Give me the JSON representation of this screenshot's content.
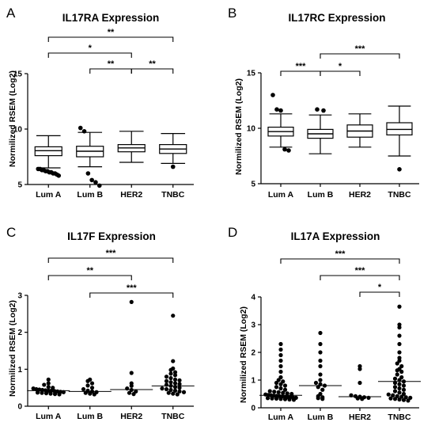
{
  "figure": {
    "background": "#ffffff",
    "ink": "#000000"
  },
  "chart_data": [
    {
      "letter": "A",
      "type": "box",
      "title": "IL17RA Expression",
      "ylabel": "Normilized RSEM (Log2)",
      "ylim": [
        5,
        15
      ],
      "yticks": [
        "5",
        "10",
        "15"
      ],
      "categories": [
        "Lum A",
        "Lum B",
        "HER2",
        "TNBC"
      ],
      "boxes": [
        {
          "whisker_low": 6.5,
          "q1": 7.6,
          "median": 8.05,
          "q3": 8.4,
          "whisker_high": 9.4,
          "outliers": [
            6.4,
            6.3,
            6.2,
            6.1,
            6.0,
            5.9,
            6.3,
            6.1,
            6.2,
            6.0,
            6.4,
            5.8
          ]
        },
        {
          "whisker_low": 6.6,
          "q1": 7.5,
          "median": 8.0,
          "q3": 8.45,
          "whisker_high": 9.7,
          "outliers": [
            6.0,
            5.4,
            4.9,
            5.2,
            9.8,
            10.1
          ]
        },
        {
          "whisker_low": 7.0,
          "q1": 7.95,
          "median": 8.3,
          "q3": 8.6,
          "whisker_high": 9.8,
          "outliers": []
        },
        {
          "whisker_low": 6.9,
          "q1": 7.8,
          "median": 8.2,
          "q3": 8.6,
          "whisker_high": 9.6,
          "outliers": [
            6.6
          ]
        }
      ],
      "brackets": [
        {
          "from": 0,
          "to": 3,
          "level": 3,
          "label": "**"
        },
        {
          "from": 0,
          "to": 2,
          "level": 2,
          "label": "*"
        },
        {
          "from": 1,
          "to": 2,
          "level": 1,
          "label": "**"
        },
        {
          "from": 2,
          "to": 3,
          "level": 1,
          "label": "**"
        }
      ]
    },
    {
      "letter": "B",
      "type": "box",
      "title": "IL17RC Expression",
      "ylabel": "Normilized RSEM (Log2)",
      "ylim": [
        5,
        15
      ],
      "yticks": [
        "5",
        "10",
        "15"
      ],
      "categories": [
        "Lum A",
        "Lum B",
        "HER2",
        "TNBC"
      ],
      "boxes": [
        {
          "whisker_low": 8.3,
          "q1": 9.3,
          "median": 9.7,
          "q3": 10.1,
          "whisker_high": 11.3,
          "outliers": [
            8.0,
            8.1,
            11.6,
            11.7,
            13.0
          ]
        },
        {
          "whisker_low": 7.7,
          "q1": 9.1,
          "median": 9.5,
          "q3": 9.9,
          "whisker_high": 11.2,
          "outliers": [
            11.6,
            11.7
          ]
        },
        {
          "whisker_low": 8.3,
          "q1": 9.2,
          "median": 9.75,
          "q3": 10.3,
          "whisker_high": 11.3,
          "outliers": []
        },
        {
          "whisker_low": 7.5,
          "q1": 9.4,
          "median": 9.9,
          "q3": 10.5,
          "whisker_high": 12.0,
          "outliers": [
            6.3
          ]
        }
      ],
      "brackets": [
        {
          "from": 1,
          "to": 3,
          "level": 2,
          "label": "***"
        },
        {
          "from": 0,
          "to": 1,
          "level": 1,
          "label": "***"
        },
        {
          "from": 1,
          "to": 2,
          "level": 1,
          "label": "*"
        }
      ]
    },
    {
      "letter": "C",
      "type": "scatter",
      "title": "IL17F Expression",
      "ylabel": "Normilized RSEM (Log2)",
      "ylim": [
        0,
        3
      ],
      "yticks": [
        "0",
        "1",
        "2",
        "3"
      ],
      "categories": [
        "Lum A",
        "Lum B",
        "HER2",
        "TNBC"
      ],
      "groups": [
        {
          "median": 0.42,
          "points": [
            0.72,
            0.62,
            0.58,
            0.52,
            0.5,
            0.48,
            0.46,
            0.45,
            0.44,
            0.43,
            0.42,
            0.42,
            0.41,
            0.4,
            0.39,
            0.38,
            0.37,
            0.36,
            0.35,
            0.34,
            0.33,
            0.32
          ]
        },
        {
          "median": 0.4,
          "points": [
            0.72,
            0.68,
            0.62,
            0.56,
            0.5,
            0.46,
            0.42,
            0.4,
            0.38,
            0.36,
            0.34,
            0.32
          ]
        },
        {
          "median": 0.45,
          "points": [
            2.82,
            0.9,
            0.62,
            0.55,
            0.48,
            0.44,
            0.4,
            0.36,
            0.33
          ]
        },
        {
          "median": 0.55,
          "points": [
            2.45,
            1.22,
            1.02,
            0.98,
            0.92,
            0.88,
            0.84,
            0.8,
            0.76,
            0.72,
            0.7,
            0.68,
            0.65,
            0.62,
            0.6,
            0.58,
            0.55,
            0.52,
            0.5,
            0.48,
            0.46,
            0.44,
            0.42,
            0.4,
            0.38,
            0.36,
            0.34,
            0.32
          ]
        }
      ],
      "brackets": [
        {
          "from": 0,
          "to": 3,
          "level": 3,
          "label": "***"
        },
        {
          "from": 0,
          "to": 2,
          "level": 2,
          "label": "**"
        },
        {
          "from": 1,
          "to": 3,
          "level": 1,
          "label": "***"
        }
      ]
    },
    {
      "letter": "D",
      "type": "scatter",
      "title": "IL17A Expression",
      "ylabel": "Normilized RSEM (Log2)",
      "ylim": [
        0,
        4
      ],
      "yticks": [
        "0",
        "1",
        "2",
        "3",
        "4"
      ],
      "categories": [
        "Lum A",
        "Lum B",
        "HER2",
        "TNBC"
      ],
      "groups": [
        {
          "median": 0.45,
          "points": [
            2.3,
            2.1,
            1.9,
            1.7,
            1.5,
            1.3,
            1.1,
            1.0,
            0.95,
            0.9,
            0.85,
            0.8,
            0.75,
            0.7,
            0.65,
            0.6,
            0.58,
            0.56,
            0.54,
            0.52,
            0.5,
            0.48,
            0.46,
            0.45,
            0.44,
            0.43,
            0.42,
            0.41,
            0.4,
            0.39,
            0.38,
            0.37,
            0.36,
            0.35,
            0.34,
            0.33,
            0.32,
            0.31,
            0.3,
            0.29
          ]
        },
        {
          "median": 0.8,
          "points": [
            2.7,
            2.3,
            2.0,
            1.7,
            1.5,
            1.2,
            1.0,
            0.9,
            0.85,
            0.8,
            0.75,
            0.65,
            0.5,
            0.42,
            0.38,
            0.35,
            0.32
          ]
        },
        {
          "median": 0.4,
          "points": [
            1.5,
            1.4,
            0.9,
            0.45,
            0.42,
            0.4,
            0.38,
            0.36,
            0.34,
            0.32
          ]
        },
        {
          "median": 0.95,
          "points": [
            3.65,
            3.0,
            2.9,
            2.6,
            2.3,
            2.0,
            1.8,
            1.7,
            1.6,
            1.5,
            1.4,
            1.35,
            1.3,
            1.2,
            1.1,
            1.05,
            1.0,
            0.95,
            0.9,
            0.85,
            0.8,
            0.75,
            0.7,
            0.65,
            0.6,
            0.55,
            0.5,
            0.48,
            0.45,
            0.42,
            0.4,
            0.38,
            0.36,
            0.34,
            0.32,
            0.3,
            0.28,
            0.26
          ]
        }
      ],
      "brackets": [
        {
          "from": 0,
          "to": 3,
          "level": 3,
          "label": "***"
        },
        {
          "from": 1,
          "to": 3,
          "level": 2,
          "label": "***"
        },
        {
          "from": 2,
          "to": 3,
          "level": 1,
          "label": "*"
        }
      ]
    }
  ]
}
